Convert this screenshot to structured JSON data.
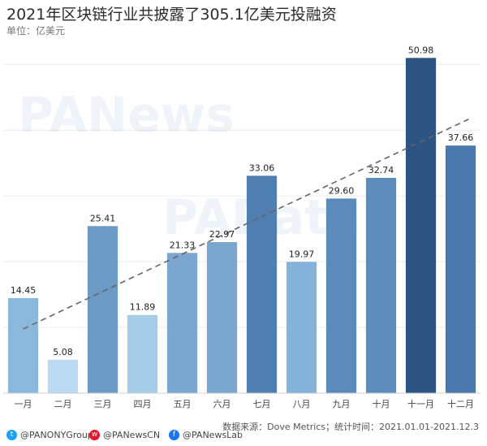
{
  "header": {
    "title": "2021年区块链行业共披露了305.1亿美元投融资",
    "subtitle": "单位：亿美元"
  },
  "chart_data": {
    "type": "bar",
    "title": "2021年区块链行业共披露了305.1亿美元投融资",
    "ylabel": "单位：亿美元",
    "categories": [
      "一月",
      "二月",
      "三月",
      "四月",
      "五月",
      "六月",
      "七月",
      "八月",
      "九月",
      "十月",
      "十一月",
      "十二月"
    ],
    "values": [
      14.45,
      5.08,
      25.41,
      11.89,
      21.33,
      22.97,
      33.06,
      19.97,
      29.6,
      32.74,
      50.98,
      37.66
    ],
    "value_labels": [
      "14.45",
      "5.08",
      "25.41",
      "11.89",
      "21.33",
      "22.97",
      "33.06",
      "19.97",
      "29.60",
      "32.74",
      "50.98",
      "37.66"
    ],
    "ylim": [
      0,
      52.5
    ],
    "grid": true,
    "trendline": "dashed linear",
    "bar_colors": [
      "#8ab8dc",
      "#bcdaf2",
      "#6b9ac4",
      "#a6cbe7",
      "#7aa6d0",
      "#7aa6d0",
      "#4f7fb0",
      "#85b2d8",
      "#5b8bbb",
      "#5d8dbd",
      "#2d5483",
      "#4a7aad"
    ],
    "trend_color": "#666666"
  },
  "watermarks": {
    "panews": "PANews",
    "padata": "PAData"
  },
  "footer": {
    "source": "数据来源：Dove Metrics；统计时间：2021.01.01-2021.12.3",
    "handles": [
      "@PANONYGroup",
      "@PANewsCN",
      "@PANewsLab"
    ],
    "icons": [
      "twitter-icon",
      "weibo-icon",
      "facebook-icon"
    ]
  }
}
